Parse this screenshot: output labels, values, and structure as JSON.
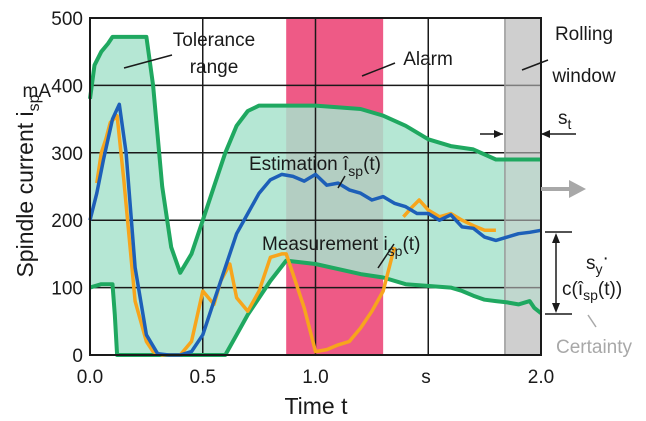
{
  "chart_data": {
    "type": "line",
    "xlabel": "Time t",
    "ylabel_main": "Spindle current i",
    "ylabel_sub": "sp",
    "x_unit": "s",
    "y_unit": "mA",
    "xlim": [
      0,
      2.0
    ],
    "ylim": [
      0,
      500
    ],
    "x_ticks": [
      "0.0",
      "0.5",
      "1.0",
      "2.0"
    ],
    "y_ticks": [
      "0",
      "100",
      "200",
      "300",
      "400",
      "500"
    ],
    "x_tick_values": [
      0,
      0.5,
      1.0,
      2.0
    ],
    "y_tick_values": [
      0,
      100,
      200,
      300,
      400,
      500
    ],
    "grid": true,
    "colors": {
      "tolerance_fill": "#a8e3cc",
      "tolerance_edge": "#1fa860",
      "estimation": "#1d5fb8",
      "measurement": "#f7a51c",
      "alarm": "#ee5a86",
      "rolling_window": "#cfcfcf",
      "certainty": "#a8a8a8"
    },
    "alarm_range": [
      0.87,
      1.3
    ],
    "rolling_window": [
      1.84,
      2.0
    ],
    "series": [
      {
        "role": "tolerance_upper",
        "x": [
          0,
          0.02,
          0.05,
          0.08,
          0.1,
          0.25,
          0.28,
          0.32,
          0.36,
          0.4,
          0.45,
          0.5,
          0.55,
          0.6,
          0.65,
          0.7,
          0.75,
          0.8,
          1.0,
          1.2,
          1.3,
          1.4,
          1.5,
          1.6,
          1.7,
          1.8,
          1.85,
          2.0
        ],
        "values": [
          380,
          430,
          450,
          462,
          472,
          472,
          400,
          250,
          160,
          122,
          150,
          200,
          250,
          300,
          340,
          362,
          370,
          370,
          370,
          365,
          355,
          340,
          320,
          310,
          305,
          290,
          290,
          290
        ]
      },
      {
        "role": "tolerance_lower",
        "x": [
          0,
          0.05,
          0.1,
          0.11,
          0.12,
          0.6,
          0.65,
          0.7,
          0.8,
          0.87,
          1.0,
          1.2,
          1.3,
          1.4,
          1.6,
          1.65,
          1.7,
          1.75,
          1.8,
          1.85,
          1.9,
          1.95,
          1.97,
          2.0
        ],
        "values": [
          100,
          105,
          105,
          60,
          0,
          0,
          30,
          60,
          110,
          140,
          135,
          120,
          115,
          105,
          100,
          95,
          88,
          82,
          80,
          78,
          75,
          80,
          70,
          62
        ]
      },
      {
        "name": "Estimation î",
        "role": "estimation",
        "x": [
          0,
          0.03,
          0.06,
          0.1,
          0.13,
          0.16,
          0.2,
          0.25,
          0.3,
          0.35,
          0.4,
          0.45,
          0.5,
          0.55,
          0.6,
          0.65,
          0.7,
          0.75,
          0.8,
          0.85,
          0.9,
          0.95,
          1.0,
          1.05,
          1.1,
          1.15,
          1.2,
          1.25,
          1.3,
          1.35,
          1.4,
          1.45,
          1.5,
          1.55,
          1.6,
          1.65,
          1.7,
          1.75,
          1.8,
          1.85,
          1.9,
          1.95,
          2.0
        ],
        "values": [
          200,
          240,
          290,
          350,
          372,
          300,
          130,
          30,
          2,
          0,
          0,
          5,
          30,
          80,
          130,
          180,
          210,
          240,
          260,
          268,
          265,
          258,
          268,
          252,
          255,
          245,
          240,
          230,
          235,
          225,
          220,
          210,
          210,
          200,
          208,
          190,
          188,
          175,
          170,
          175,
          180,
          182,
          185
        ]
      },
      {
        "name": "Measurement i",
        "role": "measurement",
        "x": [
          0.03,
          0.05,
          0.07,
          0.09,
          0.12,
          0.15,
          0.2,
          0.25,
          0.28,
          0.32,
          0.4,
          0.45,
          0.5,
          0.55,
          0.58,
          0.62,
          0.65,
          0.7,
          0.75,
          0.8,
          0.85,
          0.87,
          0.9,
          0.95,
          1.0,
          1.05,
          1.1,
          1.15,
          1.2,
          1.25,
          1.3,
          1.35
        ],
        "values": [
          255,
          300,
          320,
          345,
          355,
          260,
          80,
          20,
          5,
          0,
          0,
          20,
          95,
          75,
          110,
          135,
          85,
          65,
          95,
          145,
          150,
          150,
          120,
          70,
          5,
          8,
          15,
          20,
          40,
          65,
          95,
          160
        ]
      },
      {
        "role": "measurement_tail",
        "x": [
          1.39,
          1.43,
          1.46,
          1.5,
          1.55,
          1.6,
          1.65,
          1.7,
          1.75,
          1.8
        ],
        "values": [
          205,
          220,
          230,
          215,
          205,
          210,
          200,
          192,
          185,
          185
        ]
      }
    ],
    "labels": {
      "tolerance_line1": "Tolerance",
      "tolerance_line2": "range",
      "alarm": "Alarm",
      "rolling_line1": "Rolling",
      "rolling_line2": "window",
      "estimation_main": "Estimation î",
      "estimation_sub": "sp",
      "estimation_tail": "(t)",
      "measurement_main": "Measurement i",
      "measurement_sub": "sp",
      "measurement_tail": "(t)",
      "st_main": "s",
      "st_sub": "t",
      "sy_main": "s",
      "sy_sub": "y",
      "sy_dot": "·",
      "cert_pre": "c(î",
      "cert_sub": "sp",
      "cert_tail": "(t))",
      "certainty": "Certainty"
    }
  }
}
